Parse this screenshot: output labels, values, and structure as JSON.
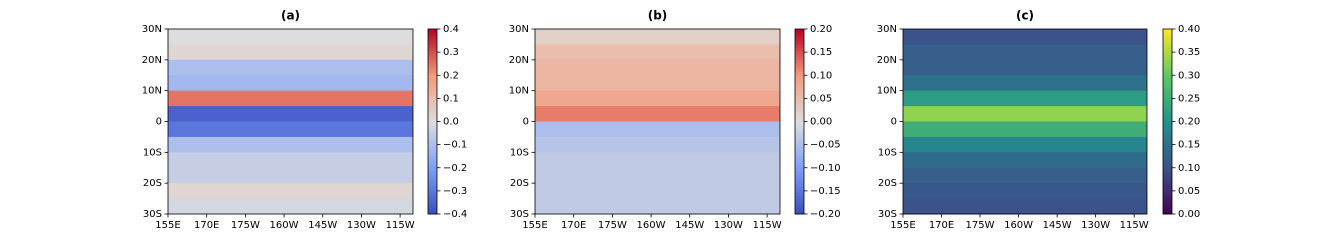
{
  "chart_data": [
    {
      "type": "heatmap",
      "title": "(a)",
      "colormap": "coolwarm",
      "y": [
        27.5,
        22.5,
        17.5,
        12.5,
        7.5,
        2.5,
        -2.5,
        -7.5,
        -12.5,
        -17.5,
        -22.5,
        -27.5
      ],
      "values": [
        0.0,
        0.02,
        -0.1,
        -0.12,
        0.25,
        -0.35,
        -0.3,
        -0.1,
        -0.05,
        -0.05,
        0.02,
        -0.02
      ],
      "xlim": [
        155,
        250
      ],
      "ylim": [
        -30,
        30
      ],
      "xticks": [
        {
          "value": 155,
          "label": "155E"
        },
        {
          "value": 170,
          "label": "170E"
        },
        {
          "value": 185,
          "label": "175W"
        },
        {
          "value": 200,
          "label": "160W"
        },
        {
          "value": 215,
          "label": "145W"
        },
        {
          "value": 230,
          "label": "130W"
        },
        {
          "value": 245,
          "label": "115W"
        }
      ],
      "yticks": [
        {
          "value": 30,
          "label": "30N"
        },
        {
          "value": 20,
          "label": "20N"
        },
        {
          "value": 10,
          "label": "10N"
        },
        0,
        {
          "value": -10,
          "label": "10S"
        },
        {
          "value": -20,
          "label": "20S"
        },
        {
          "value": -30,
          "label": "30S"
        }
      ],
      "clim": [
        -0.4,
        0.4
      ],
      "cticks": [
        {
          "value": -0.4,
          "label": "−0.4"
        },
        {
          "value": -0.3,
          "label": "−0.3"
        },
        {
          "value": -0.2,
          "label": "−0.2"
        },
        {
          "value": -0.1,
          "label": "−0.1"
        },
        {
          "value": 0,
          "label": "0.0"
        },
        0.1,
        0.2,
        0.3,
        0.4
      ]
    },
    {
      "type": "heatmap",
      "title": "(b)",
      "colormap": "coolwarm",
      "y": [
        27.5,
        22.5,
        17.5,
        12.5,
        7.5,
        2.5,
        -2.5,
        -7.5,
        -12.5,
        -17.5,
        -22.5,
        -27.5
      ],
      "values": [
        0.02,
        0.05,
        0.06,
        0.06,
        0.08,
        0.12,
        -0.05,
        -0.04,
        -0.03,
        -0.03,
        -0.03,
        -0.03
      ],
      "xlim": [
        155,
        250
      ],
      "ylim": [
        -30,
        30
      ],
      "xticks": [
        {
          "value": 155,
          "label": "155E"
        },
        {
          "value": 170,
          "label": "170E"
        },
        {
          "value": 185,
          "label": "175W"
        },
        {
          "value": 200,
          "label": "160W"
        },
        {
          "value": 215,
          "label": "145W"
        },
        {
          "value": 230,
          "label": "130W"
        },
        {
          "value": 245,
          "label": "115W"
        }
      ],
      "yticks": [
        {
          "value": 30,
          "label": "30N"
        },
        {
          "value": 20,
          "label": "20N"
        },
        {
          "value": 10,
          "label": "10N"
        },
        0,
        {
          "value": -10,
          "label": "10S"
        },
        {
          "value": -20,
          "label": "20S"
        },
        {
          "value": -30,
          "label": "30S"
        }
      ],
      "clim": [
        -0.2,
        0.2
      ],
      "cticks": [
        {
          "value": -0.2,
          "label": "−0.20"
        },
        {
          "value": -0.15,
          "label": "−0.15"
        },
        {
          "value": -0.1,
          "label": "−0.10"
        },
        {
          "value": -0.05,
          "label": "−0.05"
        },
        {
          "value": 0,
          "label": "0.00"
        },
        {
          "value": 0.05,
          "label": "0.05"
        },
        {
          "value": 0.1,
          "label": "0.10"
        },
        {
          "value": 0.15,
          "label": "0.15"
        },
        {
          "value": 0.2,
          "label": "0.20"
        }
      ]
    },
    {
      "type": "heatmap",
      "title": "(c)",
      "colormap": "viridis",
      "y": [
        27.5,
        22.5,
        17.5,
        12.5,
        7.5,
        2.5,
        -2.5,
        -7.5,
        -12.5,
        -17.5,
        -22.5,
        -27.5
      ],
      "values": [
        0.1,
        0.12,
        0.12,
        0.15,
        0.22,
        0.33,
        0.25,
        0.18,
        0.14,
        0.12,
        0.11,
        0.1
      ],
      "xlim": [
        155,
        250
      ],
      "ylim": [
        -30,
        30
      ],
      "xticks": [
        {
          "value": 155,
          "label": "155E"
        },
        {
          "value": 170,
          "label": "170E"
        },
        {
          "value": 185,
          "label": "175W"
        },
        {
          "value": 200,
          "label": "160W"
        },
        {
          "value": 215,
          "label": "145W"
        },
        {
          "value": 230,
          "label": "130W"
        },
        {
          "value": 245,
          "label": "115W"
        }
      ],
      "yticks": [
        {
          "value": 30,
          "label": "30N"
        },
        {
          "value": 20,
          "label": "20N"
        },
        {
          "value": 10,
          "label": "10N"
        },
        0,
        {
          "value": -10,
          "label": "10S"
        },
        {
          "value": -20,
          "label": "20S"
        },
        {
          "value": -30,
          "label": "30S"
        }
      ],
      "clim": [
        0,
        0.4
      ],
      "cticks": [
        {
          "value": 0,
          "label": "0.00"
        },
        {
          "value": 0.05,
          "label": "0.05"
        },
        {
          "value": 0.1,
          "label": "0.10"
        },
        {
          "value": 0.15,
          "label": "0.15"
        },
        {
          "value": 0.2,
          "label": "0.20"
        },
        {
          "value": 0.25,
          "label": "0.25"
        },
        {
          "value": 0.3,
          "label": "0.30"
        },
        {
          "value": 0.35,
          "label": "0.35"
        },
        {
          "value": 0.4,
          "label": "0.40"
        }
      ]
    }
  ]
}
